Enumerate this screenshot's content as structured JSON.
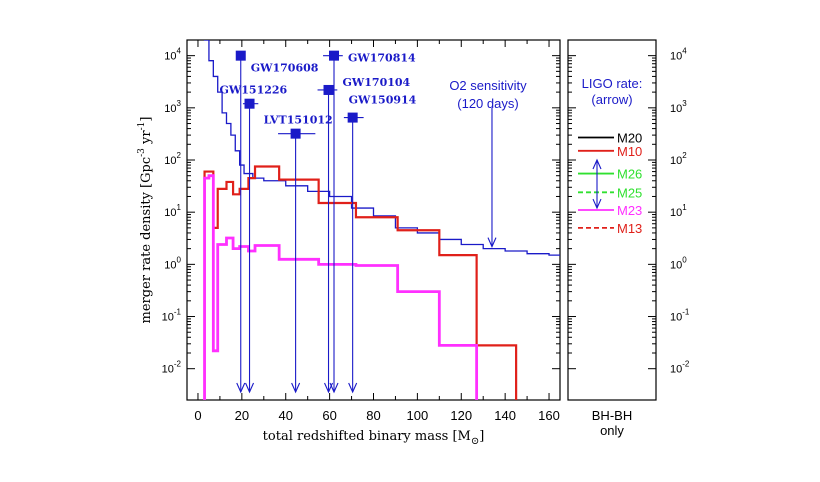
{
  "chart_data": {
    "type": "line",
    "ylabel_text": "merger rate density [Gpc",
    "ylabel_exp": "-3",
    "ylabel_mid": " yr",
    "ylabel_exp2": "-1",
    "ylabel_end": "]",
    "xlabel_text": "total redshifted binary mass [M",
    "xlabel_sub": "⊙",
    "xlabel_end": "]",
    "xlim": [
      -5,
      165
    ],
    "ylog_range": [
      -2.6,
      4.3
    ],
    "x_ticks": [
      0,
      20,
      40,
      60,
      80,
      100,
      120,
      140,
      160
    ],
    "y_ticks": [
      {
        "base": "10",
        "exp": "4",
        "v": 4
      },
      {
        "base": "10",
        "exp": "3",
        "v": 3
      },
      {
        "base": "10",
        "exp": "2",
        "v": 2
      },
      {
        "base": "10",
        "exp": "1",
        "v": 1
      },
      {
        "base": "10",
        "exp": "0",
        "v": 0
      },
      {
        "base": "10",
        "exp": "-1",
        "v": -1
      },
      {
        "base": "10",
        "exp": "-2",
        "v": -2
      }
    ],
    "colors": {
      "axis": "#000000",
      "sensitivity": "#1a1ac8",
      "events": "#1a1ac8",
      "m10": "#e0201a",
      "m23": "#ff30ff",
      "m20": "#000000",
      "m26": "#30e030",
      "m25": "#30e030",
      "m13": "#e0201a"
    },
    "series": [
      {
        "key": "o2",
        "x": [
          3,
          5,
          7,
          9,
          11,
          13,
          15,
          17,
          19,
          21,
          25,
          30,
          40,
          50,
          60,
          70,
          80,
          90,
          100,
          110,
          120,
          130,
          140,
          150,
          160,
          165
        ],
        "y": [
          20000,
          8000,
          4000,
          2000,
          800,
          500,
          300,
          150,
          80,
          55,
          45,
          40,
          32,
          25,
          20,
          12,
          8.5,
          5.0,
          4.0,
          3.0,
          2.4,
          2.0,
          1.8,
          1.6,
          1.5,
          1.2
        ]
      },
      {
        "key": "m10",
        "steps": [
          [
            3,
            6,
            60
          ],
          [
            6,
            7,
            60
          ],
          [
            7,
            9,
            5.0
          ],
          [
            9,
            13,
            28
          ],
          [
            13,
            16,
            38
          ],
          [
            16,
            19,
            22
          ],
          [
            19,
            23,
            28
          ],
          [
            23,
            26,
            45
          ],
          [
            26,
            37,
            75
          ],
          [
            37,
            55,
            42
          ],
          [
            55,
            72,
            15
          ],
          [
            72,
            91,
            8.0
          ],
          [
            91,
            110,
            4.5
          ],
          [
            110,
            127,
            1.5
          ],
          [
            127,
            145,
            0.028
          ]
        ],
        "drop_to": [
          3,
          145
        ]
      },
      {
        "key": "m23",
        "steps": [
          [
            3,
            5,
            45
          ],
          [
            5,
            7,
            50
          ],
          [
            7,
            9,
            0.022
          ],
          [
            9,
            13,
            2.4
          ],
          [
            13,
            16,
            3.2
          ],
          [
            16,
            19,
            2.0
          ],
          [
            19,
            23,
            2.2
          ],
          [
            23,
            26,
            1.8
          ],
          [
            26,
            37,
            2.3
          ],
          [
            37,
            55,
            1.25
          ],
          [
            55,
            72,
            1.0
          ],
          [
            72,
            91,
            0.95
          ],
          [
            91,
            110,
            0.3
          ],
          [
            110,
            127,
            0.028
          ]
        ],
        "drop_to": [
          3,
          127
        ]
      }
    ],
    "events": [
      {
        "name": "GW170608",
        "x": 19.5,
        "y": 10000,
        "xerr": [
          2,
          2
        ],
        "label_dx": 10,
        "label_dy": 16
      },
      {
        "name": "GW151226",
        "x": 23.5,
        "y": 1200,
        "xerr": [
          3,
          4
        ],
        "label_dx": -30,
        "label_dy": -10
      },
      {
        "name": "LVT151012",
        "x": 44.5,
        "y": 320,
        "xerr": [
          8,
          9
        ],
        "label_dx": -32,
        "label_dy": -10
      },
      {
        "name": "GW170814",
        "x": 62,
        "y": 10000,
        "xerr": [
          5,
          4
        ],
        "label_dx": 14,
        "label_dy": 6
      },
      {
        "name": "GW170104",
        "x": 59.5,
        "y": 2200,
        "xerr": [
          5,
          4
        ],
        "label_dx": 14,
        "label_dy": -4
      },
      {
        "name": "GW150914",
        "x": 70.5,
        "y": 650,
        "xerr": [
          4,
          5
        ],
        "label_dx": -4,
        "label_dy": -14
      }
    ],
    "sensitivity_label": [
      "O2 sensitivity",
      "(120 days)"
    ],
    "sensitivity_arrow": {
      "x": 134,
      "y_top": 1000,
      "y_bottom": 2.0
    },
    "side_panel": {
      "title": [
        "LIGO rate:",
        "(arrow)"
      ],
      "footer": [
        "BH-BH",
        "only"
      ],
      "legend": [
        {
          "name": "M20",
          "y": 270,
          "color": "#000000",
          "dash": false
        },
        {
          "name": "M10",
          "y": 150,
          "color": "#e0201a",
          "dash": false
        },
        {
          "name": "M26",
          "y": 55,
          "color": "#30e030",
          "dash": false
        },
        {
          "name": "M25",
          "y": 24,
          "color": "#30e030",
          "dash": true
        },
        {
          "name": "M23",
          "y": 11,
          "color": "#ff30ff",
          "dash": false
        },
        {
          "name": "M13",
          "y": 5.0,
          "color": "#e0201a",
          "dash": true
        }
      ],
      "rate_arrow": {
        "y_top": 100,
        "y_bottom": 12
      }
    }
  }
}
